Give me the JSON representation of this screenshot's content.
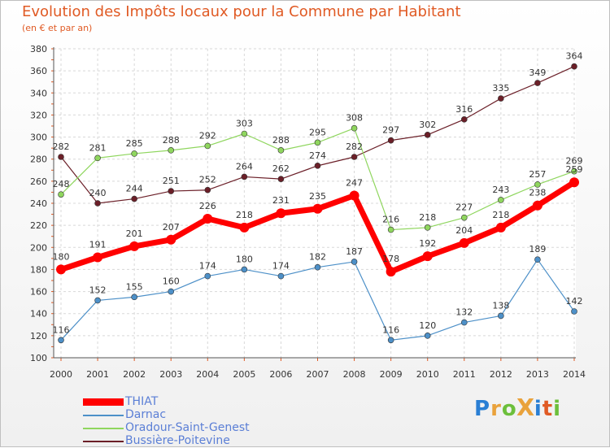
{
  "title": "Evolution des Impôts locaux pour la Commune par Habitant",
  "subtitle": "(en € et par an)",
  "logo": {
    "text": "ProXiti",
    "colors": [
      "#2a7fd4",
      "#e9a23b",
      "#6cbf3b",
      "#e9a23b",
      "#2a7fd4",
      "#e05a24",
      "#6cbf3b"
    ]
  },
  "chart_data": {
    "type": "line",
    "title": "Evolution des Impôts locaux pour la Commune par Habitant",
    "subtitle": "(en € et par an)",
    "xlabel": "",
    "ylabel": "",
    "categories": [
      "2000",
      "2001",
      "2002",
      "2003",
      "2004",
      "2005",
      "2006",
      "2007",
      "2008",
      "2009",
      "2010",
      "2011",
      "2012",
      "2013",
      "2014"
    ],
    "ylim": [
      100,
      380
    ],
    "yticks": [
      100,
      120,
      140,
      160,
      180,
      200,
      220,
      240,
      260,
      280,
      300,
      320,
      340,
      360,
      380
    ],
    "grid": true,
    "legend_position": "bottom-left",
    "series": [
      {
        "name": "THIAT",
        "color": "#ff0000",
        "values": [
          180,
          191,
          201,
          207,
          226,
          218,
          231,
          235,
          247,
          178,
          192,
          204,
          218,
          238,
          259
        ]
      },
      {
        "name": "Darnac",
        "color": "#4d90c8",
        "values": [
          116,
          152,
          155,
          160,
          174,
          180,
          174,
          182,
          187,
          116,
          120,
          132,
          138,
          189,
          142
        ]
      },
      {
        "name": "Oradour-Saint-Genest",
        "color": "#8fd65e",
        "values": [
          248,
          281,
          285,
          288,
          292,
          303,
          288,
          295,
          308,
          216,
          218,
          227,
          243,
          257,
          269
        ]
      },
      {
        "name": "Bussière-Poitevine",
        "color": "#6b1f28",
        "values": [
          282,
          240,
          244,
          251,
          252,
          264,
          262,
          274,
          282,
          297,
          302,
          316,
          335,
          349,
          364
        ]
      }
    ]
  }
}
